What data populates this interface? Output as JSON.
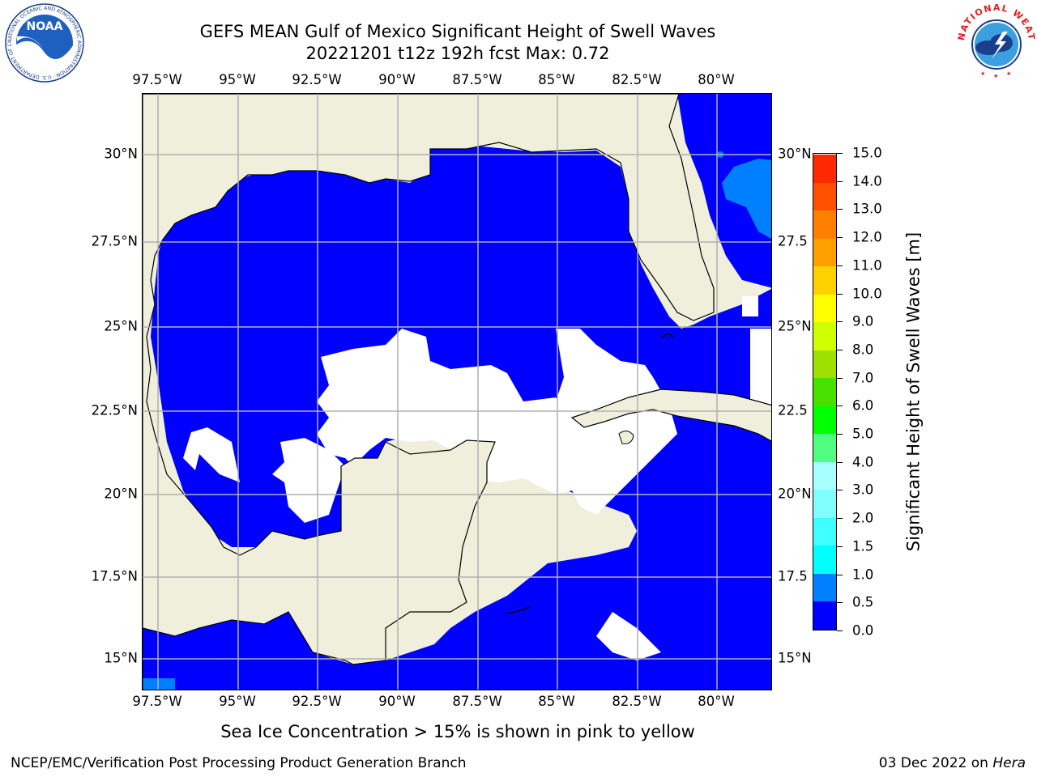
{
  "title_line1": "GEFS MEAN Gulf of Mexico Significant Height of Swell Waves",
  "title_line2": "20221201 t12z 192h fcst   Max: 0.72",
  "lon_labels": [
    "97.5°W",
    "95°W",
    "92.5°W",
    "90°W",
    "87.5°W",
    "85°W",
    "82.5°W",
    "80°W"
  ],
  "lat_labels_left": [
    "30°N",
    "27.5°N",
    "25°N",
    "22.5°N",
    "20°N",
    "17.5°N",
    "15°N"
  ],
  "lat_labels_right": [
    "30°N",
    "27.5",
    "25°N",
    "22.5",
    "20°N",
    "17.5",
    "15°N"
  ],
  "colorbar": {
    "label": "Significant Height of Swell Waves [m]",
    "ticks": [
      "0.0",
      "0.5",
      "1.0",
      "1.5",
      "2.0",
      "3.0",
      "4.0",
      "5.0",
      "6.0",
      "7.0",
      "8.0",
      "9.0",
      "10.0",
      "11.0",
      "12.0",
      "13.0",
      "14.0",
      "15.0"
    ],
    "colors": [
      "#0000ff",
      "#0080ff",
      "#00c8ff",
      "#00ffff",
      "#40ffff",
      "#80ffff",
      "#a0ffff",
      "#50ff80",
      "#00ff00",
      "#40e000",
      "#90e000",
      "#c8f000",
      "#e8ff00",
      "#ffff00",
      "#ffd000",
      "#ffb000",
      "#ff8000",
      "#ff5000",
      "#ff2800",
      "#ff0000"
    ],
    "segment_colors": [
      "#0000ff",
      "#0080ff",
      "#00ffff",
      "#40ffff",
      "#80ffff",
      "#a8ffff",
      "#50ff80",
      "#00ff00",
      "#48e000",
      "#a0e000",
      "#d0ff00",
      "#ffff00",
      "#ffd000",
      "#ffa000",
      "#ff8000",
      "#ff5000",
      "#ff2800"
    ]
  },
  "land_color": "#efefdc",
  "sea_color": "#0000ff",
  "sea_low_color": "#0080ff",
  "ice_note": "Sea Ice Concentration > 15% is shown in pink to yellow",
  "footer_left": "NCEP/EMC/Verification Post Processing Product Generation Branch",
  "footer_right_prefix": "03 Dec 2022 on ",
  "footer_right_host": "Hera",
  "logo_left_text": "NOAA",
  "logo_left_ring": "NATIONAL OCEANIC AND ATMOSPHERIC ADMINISTRATION · U.S. DEPARTMENT OF COMMERCE",
  "logo_right_ring": "NATIONAL WEATHER SERVICE"
}
